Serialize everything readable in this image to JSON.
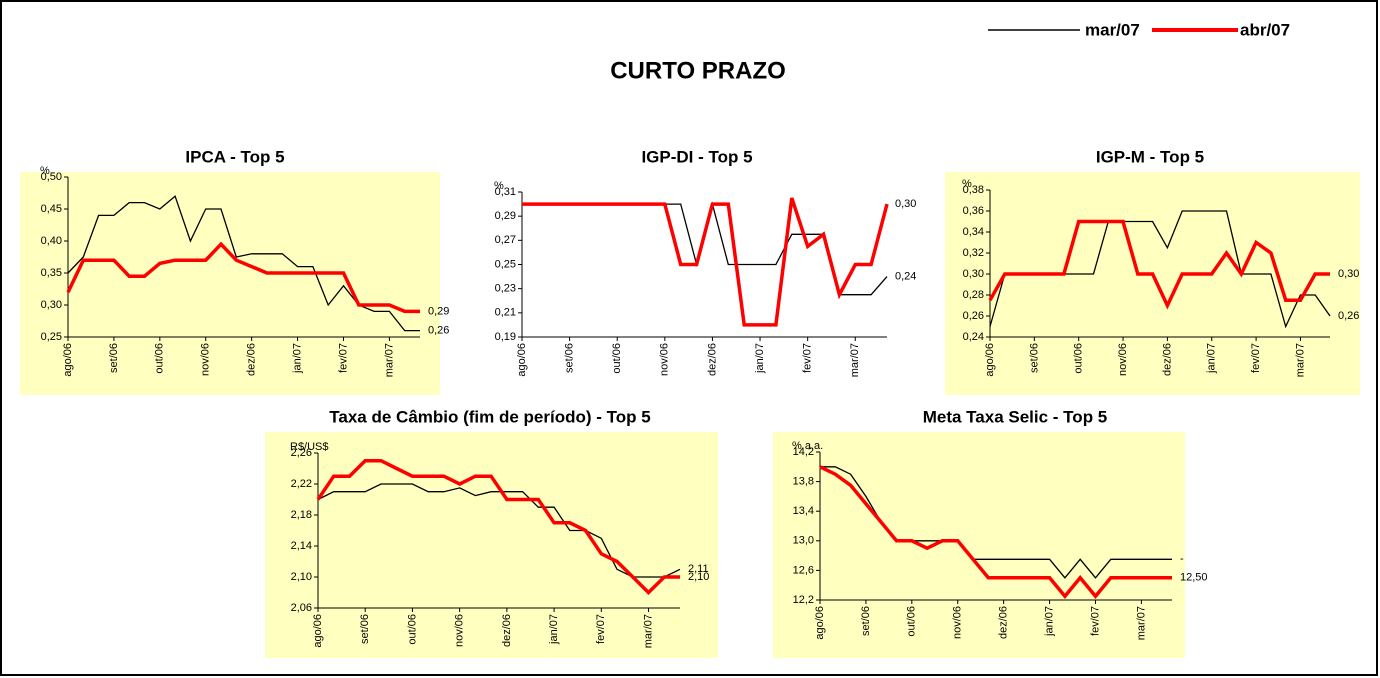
{
  "title": "CURTO PRAZO",
  "chart_data": [
    {
      "type": "line",
      "title": "IPCA - Top 5",
      "y_label": "%",
      "background": "#ffffc0",
      "categories": [
        "ago/06",
        null,
        null,
        "set/06",
        null,
        null,
        "out/06",
        null,
        null,
        "nov/06",
        null,
        null,
        "dez/06",
        null,
        null,
        "jan/07",
        null,
        null,
        "fev/07",
        null,
        null,
        "mar/07",
        null,
        null
      ],
      "ylim": [
        0.25,
        0.5
      ],
      "yticks": [
        {
          "value": 0.25,
          "label": "0,25"
        },
        {
          "value": 0.3,
          "label": "0,30"
        },
        {
          "value": 0.35,
          "label": "0,35"
        },
        {
          "value": 0.4,
          "label": "0,40"
        },
        {
          "value": 0.45,
          "label": "0,45"
        },
        {
          "value": 0.5,
          "label": "0,50"
        }
      ],
      "series": [
        {
          "name": "mar/07",
          "color": "#000000",
          "values": [
            0.35,
            0.375,
            0.44,
            0.44,
            0.46,
            0.46,
            0.45,
            0.47,
            0.4,
            0.45,
            0.45,
            0.375,
            0.38,
            0.38,
            0.38,
            0.36,
            0.36,
            0.3,
            0.33,
            0.3,
            0.29,
            0.29,
            0.26,
            0.26
          ],
          "value_labels": [
            null,
            null,
            null,
            null,
            null,
            null,
            null,
            null,
            null,
            null,
            null,
            null,
            null,
            null,
            null,
            null,
            null,
            null,
            null,
            null,
            null,
            null,
            null,
            "0,26"
          ]
        },
        {
          "name": "abr/07",
          "color": "#ff0000",
          "values": [
            0.32,
            0.37,
            0.37,
            0.37,
            0.345,
            0.345,
            0.365,
            0.37,
            0.37,
            0.37,
            0.395,
            0.37,
            0.36,
            0.35,
            0.35,
            0.35,
            0.35,
            0.35,
            0.35,
            0.3,
            0.3,
            0.3,
            0.29,
            0.29
          ],
          "value_labels": [
            null,
            null,
            null,
            null,
            null,
            null,
            null,
            null,
            null,
            null,
            null,
            null,
            null,
            null,
            null,
            null,
            null,
            null,
            null,
            null,
            null,
            null,
            null,
            "0,29"
          ]
        }
      ]
    },
    {
      "type": "line",
      "title": "IGP-DI - Top 5",
      "y_label": "%",
      "background": "#ffffff",
      "categories": [
        "ago/06",
        null,
        null,
        "set/06",
        null,
        null,
        "out/06",
        null,
        null,
        "nov/06",
        null,
        null,
        "dez/06",
        null,
        null,
        "jan/07",
        null,
        null,
        "fev/07",
        null,
        null,
        "mar/07",
        null,
        null
      ],
      "ylim": [
        0.19,
        0.31
      ],
      "yticks": [
        {
          "value": 0.19,
          "label": "0,19"
        },
        {
          "value": 0.21,
          "label": "0,21"
        },
        {
          "value": 0.23,
          "label": "0,23"
        },
        {
          "value": 0.25,
          "label": "0,25"
        },
        {
          "value": 0.27,
          "label": "0,27"
        },
        {
          "value": 0.29,
          "label": "0,29"
        },
        {
          "value": 0.31,
          "label": "0,31"
        }
      ],
      "series": [
        {
          "name": "mar/07",
          "color": "#000000",
          "values": [
            0.3,
            0.3,
            0.3,
            0.3,
            0.3,
            0.3,
            0.3,
            0.3,
            0.3,
            0.3,
            0.3,
            0.25,
            0.3,
            0.25,
            0.25,
            0.25,
            0.25,
            0.275,
            0.275,
            0.275,
            0.225,
            0.225,
            0.225,
            0.24
          ],
          "value_labels": [
            null,
            null,
            null,
            null,
            null,
            null,
            null,
            null,
            null,
            null,
            null,
            null,
            null,
            null,
            null,
            null,
            null,
            null,
            null,
            null,
            null,
            null,
            null,
            "0,24"
          ]
        },
        {
          "name": "abr/07",
          "color": "#ff0000",
          "values": [
            0.3,
            0.3,
            0.3,
            0.3,
            0.3,
            0.3,
            0.3,
            0.3,
            0.3,
            0.3,
            0.25,
            0.25,
            0.3,
            0.3,
            0.2,
            0.2,
            0.2,
            0.305,
            0.265,
            0.275,
            0.225,
            0.25,
            0.25,
            0.3
          ],
          "value_labels": [
            null,
            null,
            null,
            null,
            null,
            null,
            null,
            null,
            null,
            null,
            null,
            null,
            null,
            null,
            null,
            null,
            null,
            null,
            null,
            null,
            null,
            null,
            null,
            "0,30"
          ]
        }
      ]
    },
    {
      "type": "line",
      "title": "IGP-M - Top 5",
      "y_label": "%",
      "background": "#ffffc0",
      "categories": [
        "ago/06",
        null,
        null,
        "set/06",
        null,
        null,
        "out/06",
        null,
        null,
        "nov/06",
        null,
        null,
        "dez/06",
        null,
        null,
        "jan/07",
        null,
        null,
        "fev/07",
        null,
        null,
        "mar/07",
        null,
        null
      ],
      "ylim": [
        0.24,
        0.38
      ],
      "yticks": [
        {
          "value": 0.24,
          "label": "0,24"
        },
        {
          "value": 0.26,
          "label": "0,26"
        },
        {
          "value": 0.28,
          "label": "0,28"
        },
        {
          "value": 0.3,
          "label": "0,30"
        },
        {
          "value": 0.32,
          "label": "0,32"
        },
        {
          "value": 0.34,
          "label": "0,34"
        },
        {
          "value": 0.36,
          "label": "0,36"
        },
        {
          "value": 0.38,
          "label": "0,38"
        }
      ],
      "series": [
        {
          "name": "mar/07",
          "color": "#000000",
          "values": [
            0.25,
            0.3,
            0.3,
            0.3,
            0.3,
            0.3,
            0.3,
            0.3,
            0.35,
            0.35,
            0.35,
            0.35,
            0.325,
            0.36,
            0.36,
            0.36,
            0.36,
            0.3,
            0.3,
            0.3,
            0.25,
            0.28,
            0.28,
            0.26
          ],
          "value_labels": [
            null,
            null,
            null,
            null,
            null,
            null,
            null,
            null,
            null,
            null,
            null,
            null,
            null,
            null,
            null,
            null,
            null,
            null,
            null,
            null,
            null,
            null,
            null,
            "0,26"
          ]
        },
        {
          "name": "abr/07",
          "color": "#ff0000",
          "values": [
            0.275,
            0.3,
            0.3,
            0.3,
            0.3,
            0.3,
            0.35,
            0.35,
            0.35,
            0.35,
            0.3,
            0.3,
            0.27,
            0.3,
            0.3,
            0.3,
            0.32,
            0.3,
            0.33,
            0.32,
            0.275,
            0.275,
            0.3,
            0.3
          ],
          "value_labels": [
            null,
            null,
            null,
            null,
            null,
            null,
            null,
            null,
            null,
            null,
            null,
            null,
            null,
            null,
            null,
            null,
            null,
            null,
            null,
            null,
            null,
            null,
            null,
            "0,30"
          ]
        }
      ]
    },
    {
      "type": "line",
      "title": "Taxa de Câmbio (fim de período) - Top 5",
      "y_label": "R$/US$",
      "background": "#ffffc0",
      "categories": [
        "ago/06",
        null,
        null,
        "set/06",
        null,
        null,
        "out/06",
        null,
        null,
        "nov/06",
        null,
        null,
        "dez/06",
        null,
        null,
        "jan/07",
        null,
        null,
        "fev/07",
        null,
        null,
        "mar/07",
        null,
        null
      ],
      "ylim": [
        2.06,
        2.26
      ],
      "yticks": [
        {
          "value": 2.06,
          "label": "2,06"
        },
        {
          "value": 2.1,
          "label": "2,10"
        },
        {
          "value": 2.14,
          "label": "2,14"
        },
        {
          "value": 2.18,
          "label": "2,18"
        },
        {
          "value": 2.22,
          "label": "2,22"
        },
        {
          "value": 2.26,
          "label": "2,26"
        }
      ],
      "series": [
        {
          "name": "mar/07",
          "color": "#000000",
          "values": [
            2.2,
            2.21,
            2.21,
            2.21,
            2.22,
            2.22,
            2.22,
            2.21,
            2.21,
            2.215,
            2.205,
            2.21,
            2.21,
            2.21,
            2.19,
            2.19,
            2.16,
            2.16,
            2.15,
            2.11,
            2.1,
            2.1,
            2.1,
            2.11
          ],
          "value_labels": [
            null,
            null,
            null,
            null,
            null,
            null,
            null,
            null,
            null,
            null,
            null,
            null,
            null,
            null,
            null,
            null,
            null,
            null,
            null,
            null,
            null,
            null,
            null,
            "2,11"
          ]
        },
        {
          "name": "abr/07",
          "color": "#ff0000",
          "values": [
            2.2,
            2.23,
            2.23,
            2.25,
            2.25,
            2.24,
            2.23,
            2.23,
            2.23,
            2.22,
            2.23,
            2.23,
            2.2,
            2.2,
            2.2,
            2.17,
            2.17,
            2.16,
            2.13,
            2.12,
            2.1,
            2.08,
            2.1,
            2.1
          ],
          "value_labels": [
            null,
            null,
            null,
            null,
            null,
            null,
            null,
            null,
            null,
            null,
            null,
            null,
            null,
            null,
            null,
            null,
            null,
            null,
            null,
            null,
            null,
            null,
            null,
            "2,10"
          ]
        }
      ]
    },
    {
      "type": "line",
      "title": "Meta Taxa Selic - Top 5",
      "y_label": "% a.a.",
      "background": "#ffffc0",
      "categories": [
        "ago/06",
        null,
        null,
        "set/06",
        null,
        null,
        "out/06",
        null,
        null,
        "nov/06",
        null,
        null,
        "dez/06",
        null,
        null,
        "jan/07",
        null,
        null,
        "fev/07",
        null,
        null,
        "mar/07",
        null,
        null
      ],
      "ylim": [
        12.2,
        14.2
      ],
      "yticks": [
        {
          "value": 12.2,
          "label": "12,2"
        },
        {
          "value": 12.6,
          "label": "12,6"
        },
        {
          "value": 13,
          "label": "13,0"
        },
        {
          "value": 13.4,
          "label": "13,4"
        },
        {
          "value": 13.8,
          "label": "13,8"
        },
        {
          "value": 14.2,
          "label": "14,2"
        }
      ],
      "series": [
        {
          "name": "mar/07",
          "color": "#000000",
          "values": [
            14,
            14,
            13.9,
            13.6,
            13.25,
            13,
            13,
            13,
            13,
            13,
            12.75,
            12.75,
            12.75,
            12.75,
            12.75,
            12.75,
            12.5,
            12.75,
            12.5,
            12.75,
            12.75,
            12.75,
            12.75,
            12.75
          ],
          "value_labels": [
            null,
            null,
            null,
            null,
            null,
            null,
            null,
            null,
            null,
            null,
            null,
            null,
            null,
            null,
            null,
            null,
            null,
            null,
            null,
            null,
            null,
            null,
            null,
            "-"
          ]
        },
        {
          "name": "abr/07",
          "color": "#ff0000",
          "values": [
            14,
            13.9,
            13.75,
            13.5,
            13.25,
            13,
            13,
            12.9,
            13,
            13,
            12.75,
            12.5,
            12.5,
            12.5,
            12.5,
            12.5,
            12.25,
            12.5,
            12.25,
            12.5,
            12.5,
            12.5,
            12.5,
            12.5
          ],
          "value_labels": [
            null,
            null,
            null,
            null,
            null,
            null,
            null,
            null,
            null,
            null,
            null,
            null,
            null,
            null,
            null,
            null,
            null,
            null,
            null,
            null,
            null,
            null,
            null,
            "12,50"
          ]
        }
      ]
    }
  ]
}
